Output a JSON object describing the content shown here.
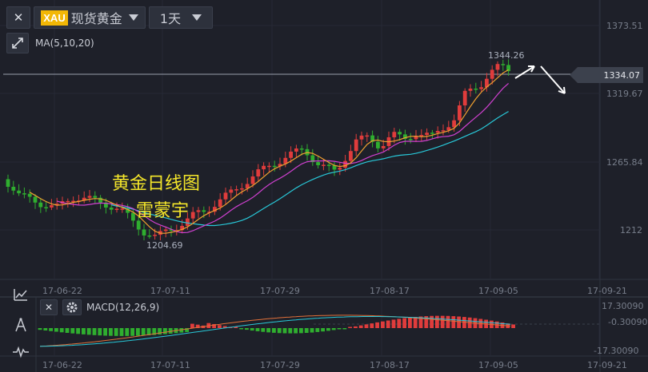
{
  "toolbar": {
    "close_label": "✕",
    "symbol_code": "XAU",
    "symbol_name": "现货黄金",
    "period": "1天",
    "indicator_label": "MA(5,10,20)"
  },
  "price_axis": {
    "labels": [
      "1373.51",
      "1319.67",
      "1265.84",
      "1212"
    ],
    "current_price": "1334.07"
  },
  "annotations": {
    "high": "1344.26",
    "low": "1204.69",
    "watermark_line1": "黄金日线图",
    "watermark_line2": "雷蒙宇"
  },
  "date_axis": [
    "17-06-22",
    "17-07-11",
    "17-07-29",
    "17-08-17",
    "17-09-05",
    "17-09-21"
  ],
  "macd": {
    "label": "MACD(12,26,9)",
    "axis_top": "17.30090",
    "axis_mid": "-0.30090",
    "axis_bottom": "-17.30090"
  },
  "colors": {
    "up": "#e03c3c",
    "down": "#2fae2f",
    "ma5": "#f0a030",
    "ma10": "#d040d0",
    "ma20": "#28c8d8",
    "watermark": "#f5e72a"
  },
  "chart_data": {
    "type": "candlestick",
    "series": [
      {
        "name": "MA(5,10,20)",
        "values": []
      },
      {
        "name": "MACD(12,26,9)",
        "values": []
      }
    ],
    "high_label": 1344.26,
    "low_label": 1204.69,
    "current": 1334.07,
    "y_ticks": [
      1373.51,
      1319.67,
      1265.84,
      1212
    ]
  }
}
